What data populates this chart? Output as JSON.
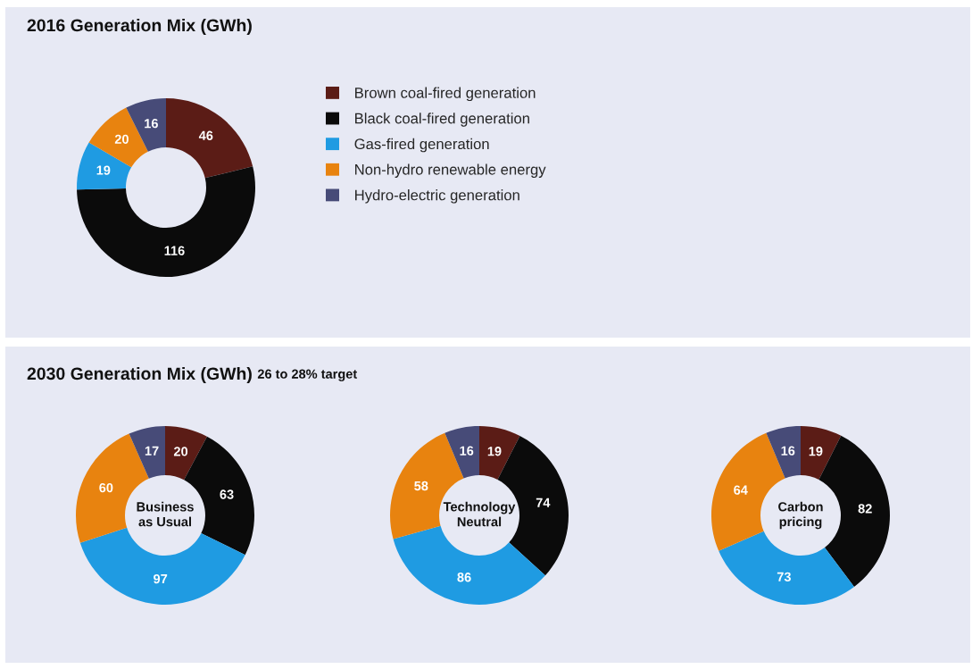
{
  "chart_data": [
    {
      "type": "donut",
      "title": "2016 Generation Mix (GWh)",
      "categories": [
        "Brown coal-fired generation",
        "Black coal-fired generation",
        "Gas-fired generation",
        "Non-hydro renewable energy",
        "Hydro-electric generation"
      ],
      "values": [
        46,
        116,
        19,
        20,
        16
      ],
      "colors": [
        "#5b1c16",
        "#0b0b0b",
        "#1f9be2",
        "#e8830f",
        "#474b78"
      ],
      "data_labels": true,
      "legend": "right"
    },
    {
      "type": "donut",
      "title": "2030 Generation Mix (GWh)",
      "subtitle": "26 to 28% target",
      "categories": [
        null,
        null,
        null,
        null,
        null
      ],
      "values": [
        20,
        63,
        97,
        60,
        17
      ],
      "colors": [
        "#5b1c16",
        "#0b0b0b",
        "#1f9be2",
        "#e8830f",
        "#474b78"
      ],
      "data_labels": true,
      "annotations": [
        "Business\nas Usual"
      ]
    },
    {
      "type": "donut",
      "categories": [
        null,
        null,
        null,
        null,
        null
      ],
      "values": [
        19,
        74,
        86,
        58,
        16
      ],
      "colors": [
        "#5b1c16",
        "#0b0b0b",
        "#1f9be2",
        "#e8830f",
        "#474b78"
      ],
      "data_labels": true,
      "annotations": [
        "Technology\nNeutral"
      ]
    },
    {
      "type": "donut",
      "categories": [
        null,
        null,
        null,
        null,
        null
      ],
      "values": [
        19,
        82,
        73,
        64,
        16
      ],
      "colors": [
        "#5b1c16",
        "#0b0b0b",
        "#1f9be2",
        "#e8830f",
        "#474b78"
      ],
      "data_labels": true,
      "annotations": [
        "Carbon\npricing"
      ]
    }
  ]
}
